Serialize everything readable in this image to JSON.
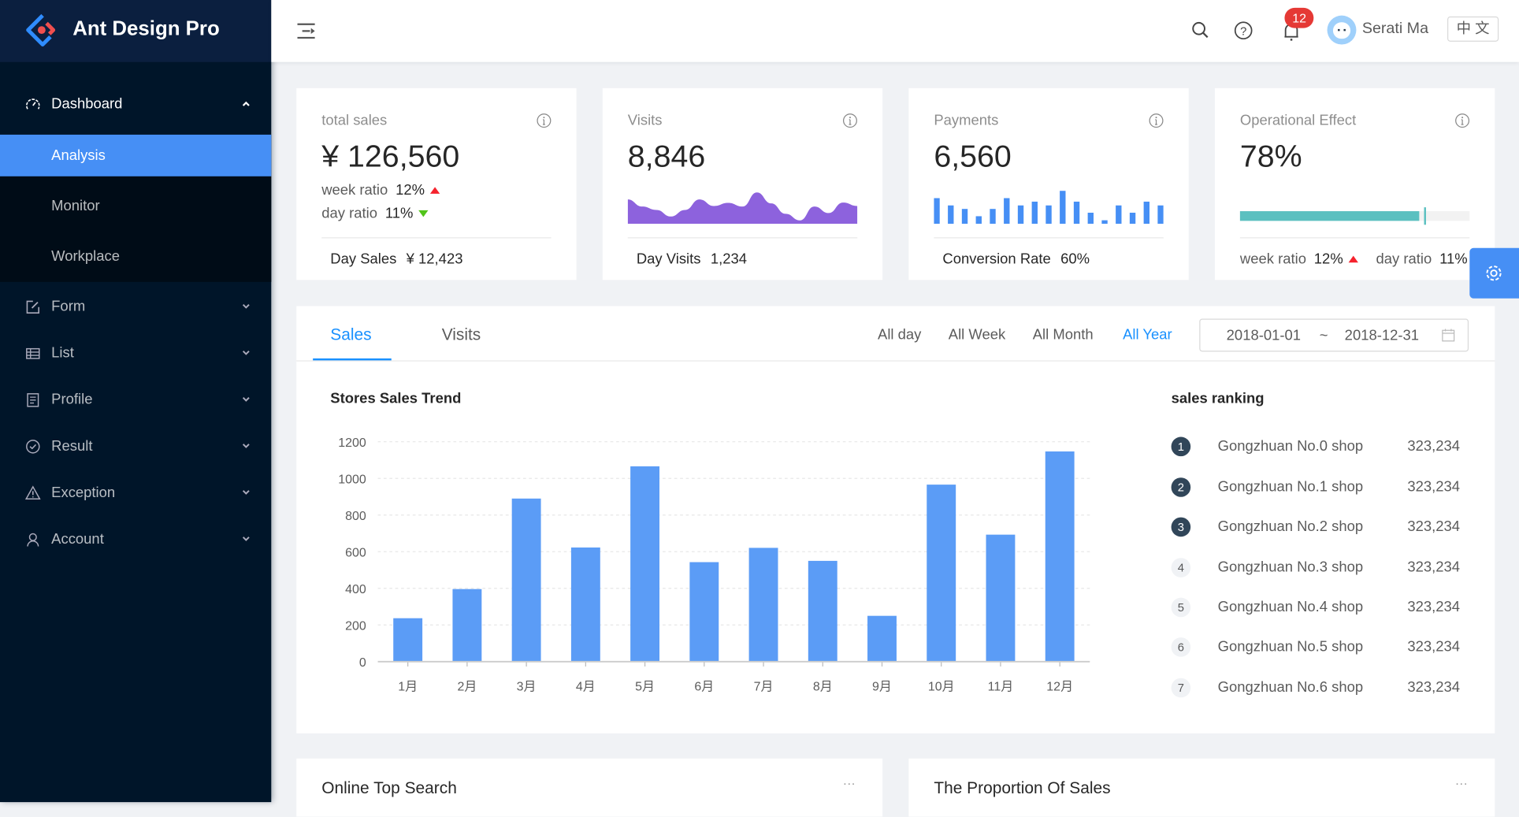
{
  "app": {
    "title": "Ant Design Pro"
  },
  "colors": {
    "sider": "#001529",
    "primary": "#1890ff",
    "selected": "#468ff5",
    "bar": "#5b9cf6",
    "area": "#8d62dd",
    "progress": "#5bc0c0",
    "up": "#f5222d",
    "down": "#52c41a"
  },
  "sidebar": {
    "items": [
      {
        "label": "Dashboard",
        "icon": "dashboard-icon",
        "expanded": true,
        "children": [
          {
            "label": "Analysis",
            "selected": true
          },
          {
            "label": "Monitor"
          },
          {
            "label": "Workplace"
          }
        ]
      },
      {
        "label": "Form",
        "icon": "form-icon"
      },
      {
        "label": "List",
        "icon": "table-icon"
      },
      {
        "label": "Profile",
        "icon": "profile-icon"
      },
      {
        "label": "Result",
        "icon": "check-circle-icon"
      },
      {
        "label": "Exception",
        "icon": "warning-icon"
      },
      {
        "label": "Account",
        "icon": "user-icon"
      }
    ]
  },
  "header": {
    "notification_count": "12",
    "user_name": "Serati Ma",
    "language": "中 文"
  },
  "stats": [
    {
      "title": "total sales",
      "value": "¥ 126,560",
      "week_label": "week ratio",
      "week_value": "12%",
      "day_label": "day ratio",
      "day_value": "11%",
      "footer_label": "Day Sales",
      "footer_value": "¥ 12,423"
    },
    {
      "title": "Visits",
      "value": "8,846",
      "footer_label": "Day Visits",
      "footer_value": "1,234",
      "trend": [
        93,
        66,
        53,
        28,
        53,
        93,
        68,
        80,
        66,
        120,
        78,
        38,
        13,
        66,
        41,
        81,
        68
      ]
    },
    {
      "title": "Payments",
      "value": "6,560",
      "footer_label": "Conversion Rate",
      "footer_value": "60%",
      "bars": [
        95,
        68,
        55,
        28,
        55,
        95,
        68,
        82,
        68,
        122,
        82,
        41,
        13,
        68,
        41,
        82,
        68
      ]
    },
    {
      "title": "Operational Effect",
      "value": "78%",
      "progress": 78,
      "target": 80,
      "week_label": "week ratio",
      "week_value": "12%",
      "day_label": "day ratio",
      "day_value": "11%"
    }
  ],
  "sales": {
    "tabs": [
      "Sales",
      "Visits"
    ],
    "active_tab": "Sales",
    "filters": [
      "All day",
      "All Week",
      "All Month",
      "All Year"
    ],
    "active_filter": "All Year",
    "date_start": "2018-01-01",
    "date_sep": "~",
    "date_end": "2018-12-31",
    "ranking_title": "sales ranking",
    "ranking": [
      {
        "rank": "1",
        "name": "Gongzhuan No.0 shop",
        "value": "323,234"
      },
      {
        "rank": "2",
        "name": "Gongzhuan No.1 shop",
        "value": "323,234"
      },
      {
        "rank": "3",
        "name": "Gongzhuan No.2 shop",
        "value": "323,234"
      },
      {
        "rank": "4",
        "name": "Gongzhuan No.3 shop",
        "value": "323,234"
      },
      {
        "rank": "5",
        "name": "Gongzhuan No.4 shop",
        "value": "323,234"
      },
      {
        "rank": "6",
        "name": "Gongzhuan No.5 shop",
        "value": "323,234"
      },
      {
        "rank": "7",
        "name": "Gongzhuan No.6 shop",
        "value": "323,234"
      }
    ]
  },
  "chart_data": {
    "type": "bar",
    "title": "Stores Sales Trend",
    "categories": [
      "1月",
      "2月",
      "3月",
      "4月",
      "5月",
      "6月",
      "7月",
      "8月",
      "9月",
      "10月",
      "11月",
      "12月"
    ],
    "values": [
      237,
      396,
      890,
      623,
      1066,
      543,
      621,
      550,
      250,
      966,
      693,
      1147
    ],
    "ylim": [
      0,
      1200
    ],
    "yticks": [
      0,
      200,
      400,
      600,
      800,
      1000,
      1200
    ],
    "grid": true
  },
  "bottom": {
    "left_title": "Online Top Search",
    "right_title": "The Proportion Of Sales",
    "more": "···"
  }
}
